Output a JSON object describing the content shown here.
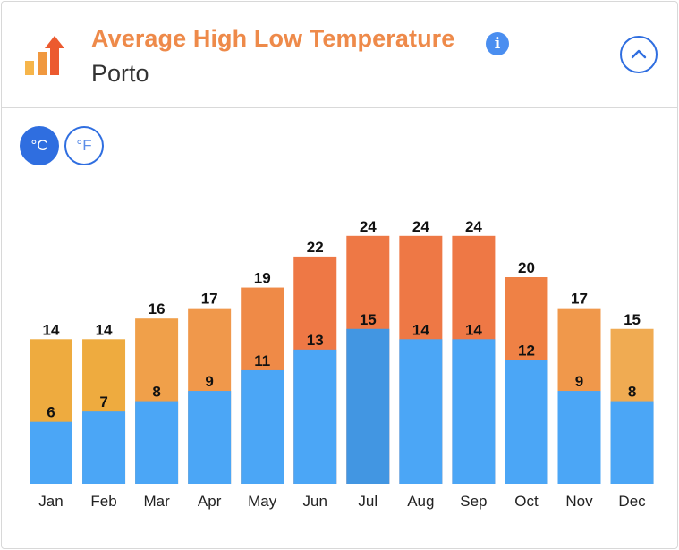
{
  "header": {
    "title": "Average High Low Temperature",
    "subtitle": "Porto",
    "info_icon": "info-icon",
    "info_glyph": "i",
    "collapse_icon": "chevron-up-icon"
  },
  "units": {
    "celsius_label": "°C",
    "fahrenheit_label": "°F",
    "selected": "celsius"
  },
  "colors": {
    "title": "#ee8a4a",
    "accent_blue": "#2f6ee0",
    "low_bar": "#4ba6f6",
    "low_bar_highlight": "#4296e2",
    "high_warm_1": "#eeab3f",
    "high_warm_2": "#f0984b",
    "high_hot": "#ee7845"
  },
  "chart_data": {
    "type": "bar",
    "categories": [
      "Jan",
      "Feb",
      "Mar",
      "Apr",
      "May",
      "Jun",
      "Jul",
      "Aug",
      "Sep",
      "Oct",
      "Nov",
      "Dec"
    ],
    "series": [
      {
        "values": [
          14,
          14,
          16,
          17,
          19,
          22,
          24,
          24,
          24,
          20,
          17,
          15
        ]
      },
      {
        "values": [
          6,
          7,
          8,
          9,
          11,
          13,
          15,
          14,
          14,
          12,
          9,
          8
        ]
      }
    ],
    "high_colors": [
      "#eeab3f",
      "#eeab3f",
      "#f0a04a",
      "#f0984b",
      "#ef8a47",
      "#ee7845",
      "#ee7845",
      "#ee7845",
      "#ee7845",
      "#ef8145",
      "#f0984b",
      "#f0ab52"
    ],
    "low_colors": [
      "#4ba6f6",
      "#4ba6f6",
      "#4ba6f6",
      "#4ba6f6",
      "#4ba6f6",
      "#4ba6f6",
      "#4296e2",
      "#4ba6f6",
      "#4ba6f6",
      "#4ba6f6",
      "#4ba6f6",
      "#4ba6f6"
    ],
    "ylim": [
      0,
      27
    ],
    "grid": false,
    "legend": "none"
  }
}
